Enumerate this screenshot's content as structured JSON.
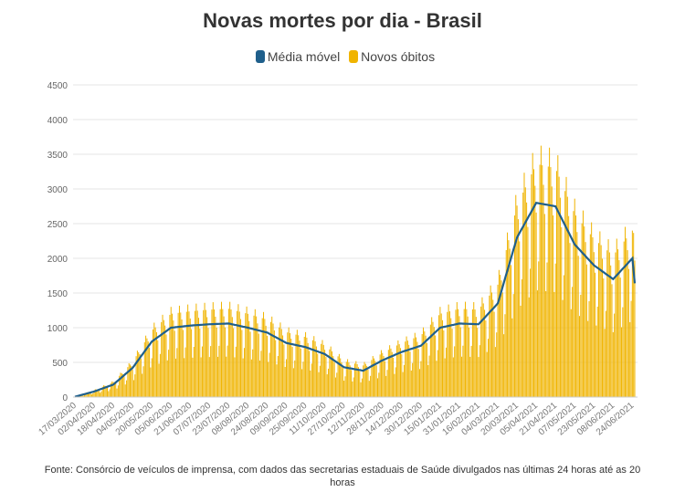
{
  "chart_data": {
    "type": "bar+line",
    "title": "Novas mortes por dia - Brasil",
    "legend": [
      "Média móvel",
      "Novos óbitos"
    ],
    "legend_position": "top-center",
    "colors": {
      "moving_average": "#1f5f8b",
      "daily": "#f0b400"
    },
    "ylim": [
      0,
      4500
    ],
    "yticks": [
      0,
      500,
      1000,
      1500,
      2000,
      2500,
      3000,
      3500,
      4000,
      4500
    ],
    "xtick_labels": [
      "17/03/2020",
      "02/04/2020",
      "18/04/2020",
      "04/05/2020",
      "20/05/2020",
      "05/06/2020",
      "21/06/2020",
      "07/07/2020",
      "23/07/2020",
      "08/08/2020",
      "24/08/2020",
      "09/09/2020",
      "25/09/2020",
      "11/10/2020",
      "27/10/2020",
      "12/11/2020",
      "28/11/2020",
      "14/12/2020",
      "30/12/2020",
      "15/01/2021",
      "31/01/2021",
      "16/02/2021",
      "04/03/2021",
      "20/03/2021",
      "05/04/2021",
      "21/04/2021",
      "07/05/2021",
      "23/05/2021",
      "08/06/2021",
      "24/06/2021"
    ],
    "moving_average_at_ticks": [
      5,
      80,
      180,
      420,
      800,
      1000,
      1030,
      1050,
      1060,
      1000,
      930,
      780,
      720,
      620,
      430,
      380,
      530,
      650,
      740,
      1000,
      1060,
      1050,
      1350,
      2300,
      2800,
      2750,
      2200,
      1900,
      1700,
      2000
    ],
    "moving_average_last": 1640,
    "days_between_ticks": 16,
    "days_after_last_tick": 2,
    "weekday_pattern": [
      0.55,
      0.7,
      1.2,
      1.3,
      1.2,
      1.1,
      0.95
    ]
  },
  "source": "Fonte: Consórcio de veículos de imprensa, com dados das secretarias estaduais de Saúde divulgados nas últimas 24 horas até as 20 horas"
}
